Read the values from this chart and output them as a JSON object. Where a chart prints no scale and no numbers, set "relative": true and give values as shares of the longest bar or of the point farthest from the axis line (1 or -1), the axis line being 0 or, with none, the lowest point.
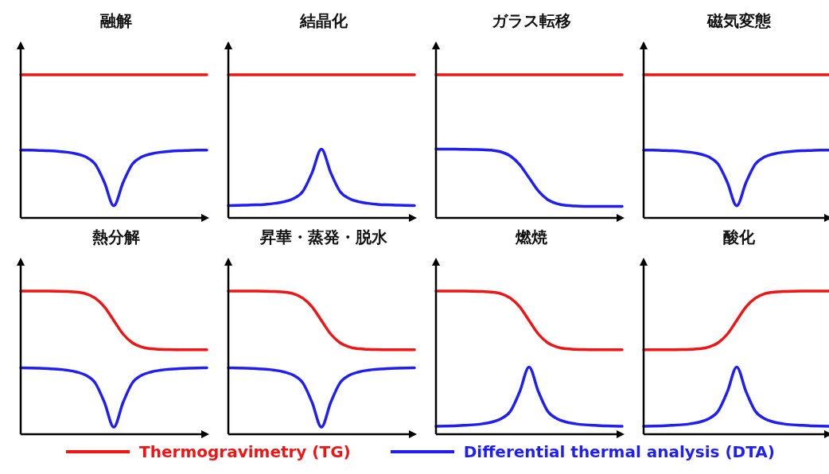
{
  "chart_data": [
    {
      "type": "line",
      "title": "融解",
      "relative": true,
      "categories": [
        null,
        null,
        null,
        null,
        null,
        null,
        null,
        null,
        null,
        null,
        null,
        null,
        null,
        null,
        null,
        null,
        null,
        null,
        null,
        null,
        null
      ],
      "series": [
        {
          "color": "#f01414",
          "values": [
            1,
            1,
            1,
            1,
            1,
            1,
            1,
            1,
            1,
            1,
            1,
            1,
            1,
            1,
            1,
            1,
            1,
            1,
            1,
            1,
            1
          ]
        },
        {
          "color": "#1e1ef5",
          "values": [
            0.474,
            0.473,
            0.471,
            0.469,
            0.465,
            0.459,
            0.447,
            0.426,
            0.376,
            0.247,
            0.085,
            0.247,
            0.376,
            0.426,
            0.447,
            0.459,
            0.465,
            0.469,
            0.471,
            0.473,
            0.474
          ]
        }
      ]
    },
    {
      "type": "line",
      "title": "結晶化",
      "relative": true,
      "categories": [
        null,
        null,
        null,
        null,
        null,
        null,
        null,
        null,
        null,
        null,
        null,
        null,
        null,
        null,
        null,
        null,
        null,
        null,
        null,
        null,
        null
      ],
      "series": [
        {
          "color": "#f01414",
          "values": [
            1,
            1,
            1,
            1,
            1,
            1,
            1,
            1,
            1,
            1,
            1,
            1,
            1,
            1,
            1,
            1,
            1,
            1,
            1,
            1,
            1
          ]
        },
        {
          "color": "#1e1ef5",
          "values": [
            0.086,
            0.087,
            0.089,
            0.091,
            0.095,
            0.102,
            0.113,
            0.135,
            0.185,
            0.316,
            0.48,
            0.316,
            0.185,
            0.135,
            0.113,
            0.102,
            0.095,
            0.091,
            0.089,
            0.087,
            0.086
          ]
        }
      ]
    },
    {
      "type": "line",
      "title": "ガラス転移",
      "relative": true,
      "categories": [
        null,
        null,
        null,
        null,
        null,
        null,
        null,
        null,
        null,
        null,
        null,
        null,
        null,
        null,
        null,
        null,
        null,
        null,
        null,
        null,
        null
      ],
      "series": [
        {
          "color": "#f01414",
          "values": [
            1,
            1,
            1,
            1,
            1,
            1,
            1,
            1,
            1,
            1,
            1,
            1,
            1,
            1,
            1,
            1,
            1,
            1,
            1,
            1,
            1
          ]
        },
        {
          "color": "#1e1ef5",
          "values": [
            0.48,
            0.48,
            0.48,
            0.479,
            0.478,
            0.477,
            0.473,
            0.461,
            0.432,
            0.372,
            0.28,
            0.188,
            0.128,
            0.099,
            0.087,
            0.083,
            0.081,
            0.08,
            0.08,
            0.08,
            0.08
          ]
        }
      ]
    },
    {
      "type": "line",
      "title": "磁気変態",
      "relative": true,
      "categories": [
        null,
        null,
        null,
        null,
        null,
        null,
        null,
        null,
        null,
        null,
        null,
        null,
        null,
        null,
        null,
        null,
        null,
        null,
        null,
        null,
        null
      ],
      "series": [
        {
          "color": "#f01414",
          "values": [
            1,
            1,
            1,
            1,
            1,
            1,
            1,
            1,
            1,
            1,
            1,
            1,
            1,
            1,
            1,
            1,
            1,
            1,
            1,
            1,
            1
          ]
        },
        {
          "color": "#1e1ef5",
          "values": [
            0.474,
            0.473,
            0.471,
            0.469,
            0.465,
            0.459,
            0.447,
            0.426,
            0.376,
            0.247,
            0.085,
            0.247,
            0.376,
            0.426,
            0.447,
            0.459,
            0.465,
            0.469,
            0.471,
            0.473,
            0.474
          ]
        }
      ]
    },
    {
      "type": "line",
      "title": "熱分解",
      "relative": true,
      "categories": [
        null,
        null,
        null,
        null,
        null,
        null,
        null,
        null,
        null,
        null,
        null,
        null,
        null,
        null,
        null,
        null,
        null,
        null,
        null,
        null,
        null
      ],
      "series": [
        {
          "color": "#f01414",
          "values": [
            1,
            1,
            1,
            1,
            0.999,
            0.997,
            0.993,
            0.981,
            0.951,
            0.89,
            0.795,
            0.7,
            0.639,
            0.609,
            0.597,
            0.593,
            0.591,
            0.59,
            0.59,
            0.59,
            0.59
          ]
        },
        {
          "color": "#1e1ef5",
          "values": [
            0.464,
            0.463,
            0.461,
            0.458,
            0.454,
            0.447,
            0.435,
            0.412,
            0.359,
            0.222,
            0.05,
            0.222,
            0.359,
            0.412,
            0.435,
            0.447,
            0.454,
            0.458,
            0.461,
            0.463,
            0.464
          ]
        }
      ]
    },
    {
      "type": "line",
      "title": "昇華・蒸発・脱水",
      "relative": true,
      "categories": [
        null,
        null,
        null,
        null,
        null,
        null,
        null,
        null,
        null,
        null,
        null,
        null,
        null,
        null,
        null,
        null,
        null,
        null,
        null,
        null,
        null
      ],
      "series": [
        {
          "color": "#f01414",
          "values": [
            1,
            1,
            1,
            1,
            0.999,
            0.997,
            0.993,
            0.981,
            0.951,
            0.89,
            0.795,
            0.7,
            0.639,
            0.609,
            0.597,
            0.593,
            0.591,
            0.59,
            0.59,
            0.59,
            0.59
          ]
        },
        {
          "color": "#1e1ef5",
          "values": [
            0.464,
            0.463,
            0.461,
            0.458,
            0.454,
            0.447,
            0.435,
            0.412,
            0.359,
            0.222,
            0.05,
            0.222,
            0.359,
            0.412,
            0.435,
            0.447,
            0.454,
            0.458,
            0.461,
            0.463,
            0.464
          ]
        }
      ]
    },
    {
      "type": "line",
      "title": "燃焼",
      "relative": true,
      "categories": [
        null,
        null,
        null,
        null,
        null,
        null,
        null,
        null,
        null,
        null,
        null,
        null,
        null,
        null,
        null,
        null,
        null,
        null,
        null,
        null,
        null
      ],
      "series": [
        {
          "color": "#f01414",
          "values": [
            1,
            1,
            1,
            1,
            0.999,
            0.997,
            0.993,
            0.981,
            0.951,
            0.89,
            0.795,
            0.7,
            0.639,
            0.609,
            0.597,
            0.593,
            0.591,
            0.59,
            0.59,
            0.59,
            0.59
          ]
        },
        {
          "color": "#1e1ef5",
          "values": [
            0.056,
            0.057,
            0.059,
            0.062,
            0.066,
            0.073,
            0.085,
            0.108,
            0.161,
            0.298,
            0.47,
            0.298,
            0.161,
            0.108,
            0.085,
            0.073,
            0.066,
            0.062,
            0.059,
            0.057,
            0.056
          ]
        }
      ]
    },
    {
      "type": "line",
      "title": "酸化",
      "relative": true,
      "legend": "bottom",
      "categories": [
        null,
        null,
        null,
        null,
        null,
        null,
        null,
        null,
        null,
        null,
        null,
        null,
        null,
        null,
        null,
        null,
        null,
        null,
        null,
        null,
        null
      ],
      "series": [
        {
          "name": "Thermogravimetry (TG)",
          "color": "#f01414",
          "values": [
            0.59,
            0.59,
            0.59,
            0.59,
            0.591,
            0.593,
            0.597,
            0.609,
            0.639,
            0.7,
            0.795,
            0.89,
            0.951,
            0.981,
            0.993,
            0.997,
            0.999,
            1,
            1,
            1,
            1
          ]
        },
        {
          "name": "Differential thermal analysis (DTA)",
          "color": "#1e1ef5",
          "values": [
            0.056,
            0.057,
            0.059,
            0.062,
            0.066,
            0.073,
            0.085,
            0.108,
            0.161,
            0.298,
            0.47,
            0.298,
            0.161,
            0.108,
            0.085,
            0.073,
            0.066,
            0.062,
            0.059,
            0.057,
            0.056
          ]
        }
      ]
    }
  ]
}
